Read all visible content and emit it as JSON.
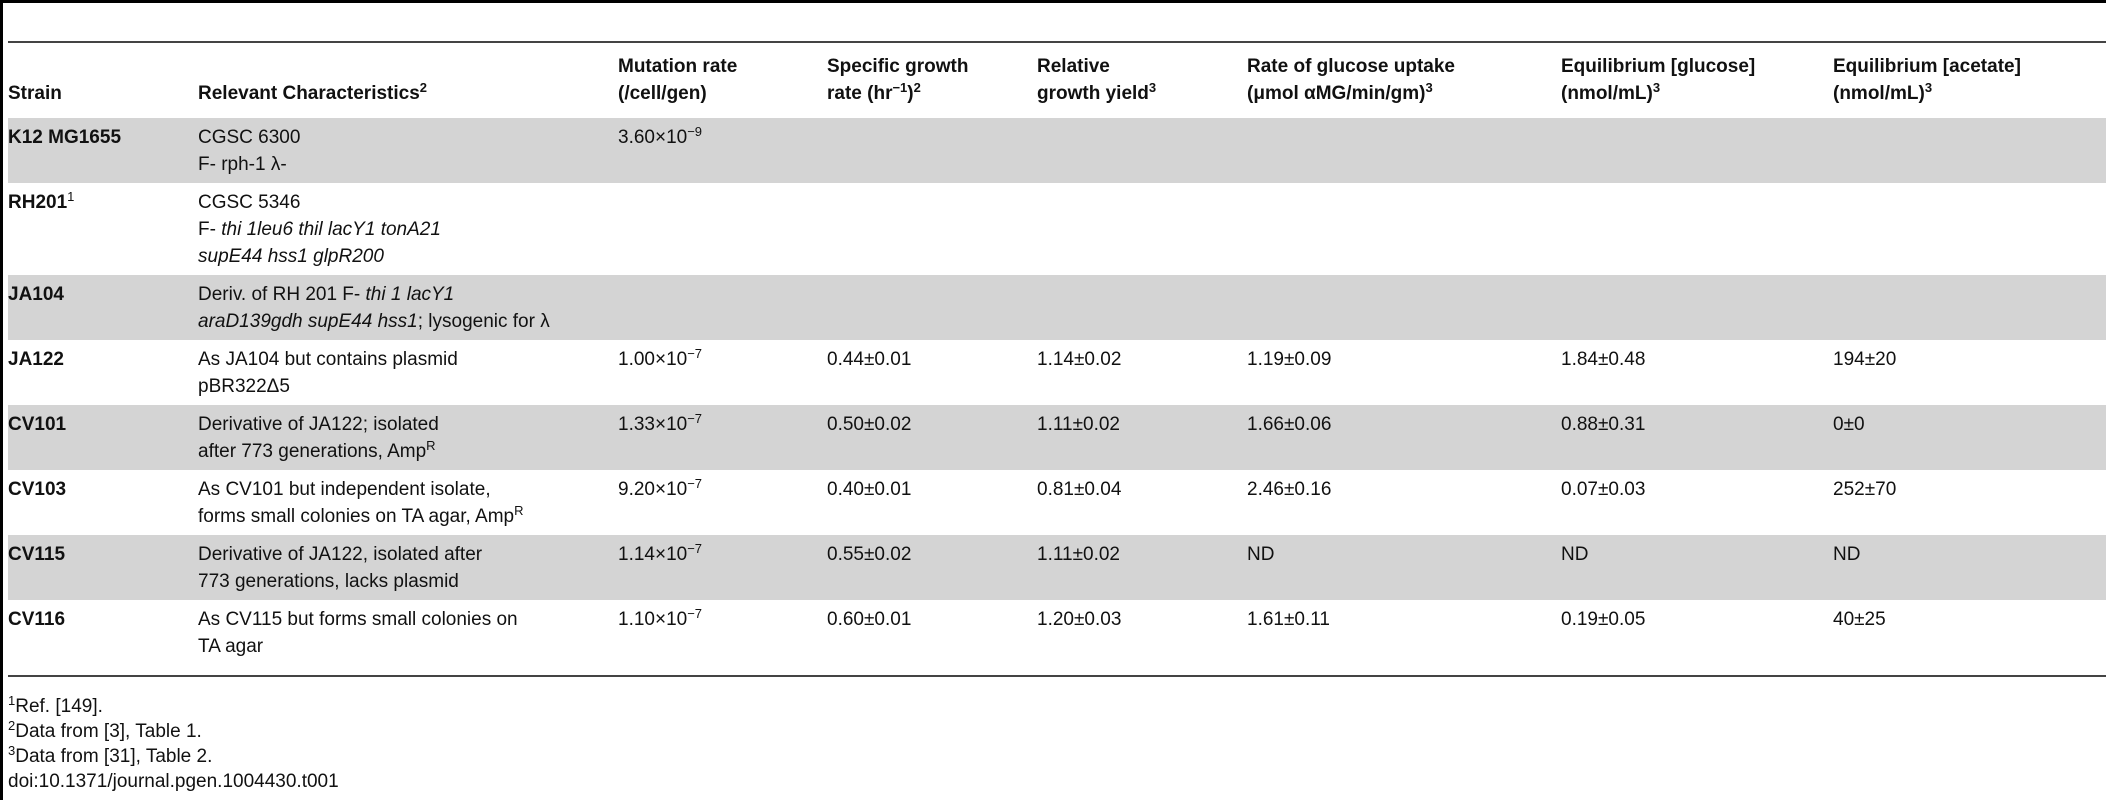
{
  "headers": {
    "strain": "Strain",
    "characteristics": "Relevant Characteristics",
    "characteristics_sup": "2",
    "mutation_l1": "Mutation rate",
    "mutation_l2": "(/cell/gen)",
    "growth_l1": "Specific growth",
    "growth_l2a": "rate (hr",
    "growth_l2_exp": "−1",
    "growth_l2b": ")",
    "growth_sup": "2",
    "yield_l1": "Relative",
    "yield_l2": "growth yield",
    "yield_sup": "3",
    "uptake_l1": "Rate of glucose uptake",
    "uptake_l2": "(μmol αMG/min/gm)",
    "uptake_sup": "3",
    "glucose_l1": "Equilibrium [glucose]",
    "glucose_l2": "(nmol/mL)",
    "glucose_sup": "3",
    "acetate_l1": "Equilibrium [acetate]",
    "acetate_l2": "(nmol/mL)",
    "acetate_sup": "3"
  },
  "rows": [
    {
      "strain": "K12 MG1655",
      "char_l1": "CGSC 6300",
      "char_l2": "F- rph-1 λ-",
      "mut_base": "3.60×10",
      "mut_exp": "−9"
    },
    {
      "strain": "RH201",
      "strain_sup": "1",
      "char_l1": "CGSC 5346",
      "char_l2a": "F- ",
      "char_l2_it": "thi 1leu6 thil lacY1 tonA21",
      "char_l3_it": "supE44 hss1 glpR200"
    },
    {
      "strain": "JA104",
      "char_l1a": "Deriv. of RH 201 F- ",
      "char_l1_it": "thi 1 lacY1",
      "char_l2_it": "araD139gdh supE44 hss1",
      "char_l2b": "; lysogenic for λ"
    },
    {
      "strain": "JA122",
      "char_l1": "As JA104 but contains plasmid",
      "char_l2": "pBR322Δ5",
      "mut_base": "1.00×10",
      "mut_exp": "−7",
      "growth": "0.44±0.01",
      "yield": "1.14±0.02",
      "uptake": "1.19±0.09",
      "glucose": "1.84±0.48",
      "acetate": "194±20"
    },
    {
      "strain": "CV101",
      "char_l1": "Derivative of JA122; isolated",
      "char_l2": "after 773 generations, Amp",
      "char_l2_sup": "R",
      "mut_base": "1.33×10",
      "mut_exp": "−7",
      "growth": "0.50±0.02",
      "yield": "1.11±0.02",
      "uptake": "1.66±0.06",
      "glucose": "0.88±0.31",
      "acetate": "0±0"
    },
    {
      "strain": "CV103",
      "char_l1": "As CV101 but independent isolate,",
      "char_l2": "forms small colonies on TA agar, Amp",
      "char_l2_sup": "R",
      "mut_base": "9.20×10",
      "mut_exp": "−7",
      "growth": "0.40±0.01",
      "yield": "0.81±0.04",
      "uptake": "2.46±0.16",
      "glucose": "0.07±0.03",
      "acetate": "252±70"
    },
    {
      "strain": "CV115",
      "char_l1": "Derivative of JA122, isolated after",
      "char_l2": "773 generations, lacks plasmid",
      "mut_base": "1.14×10",
      "mut_exp": "−7",
      "growth": "0.55±0.02",
      "yield": "1.11±0.02",
      "uptake": "ND",
      "glucose": "ND",
      "acetate": "ND"
    },
    {
      "strain": "CV116",
      "char_l1": "As CV115 but forms small colonies on",
      "char_l2": "TA agar",
      "mut_base": "1.10×10",
      "mut_exp": "−7",
      "growth": "0.60±0.01",
      "yield": "1.20±0.03",
      "uptake": "1.61±0.11",
      "glucose": "0.19±0.05",
      "acetate": "40±25"
    }
  ],
  "footnotes": {
    "n1_sup": "1",
    "n1": "Ref. [149].",
    "n2_sup": "2",
    "n2": "Data from [3], Table 1.",
    "n3_sup": "3",
    "n3": "Data from [31], Table 2.",
    "doi": "doi:10.1371/journal.pgen.1004430.t001"
  }
}
